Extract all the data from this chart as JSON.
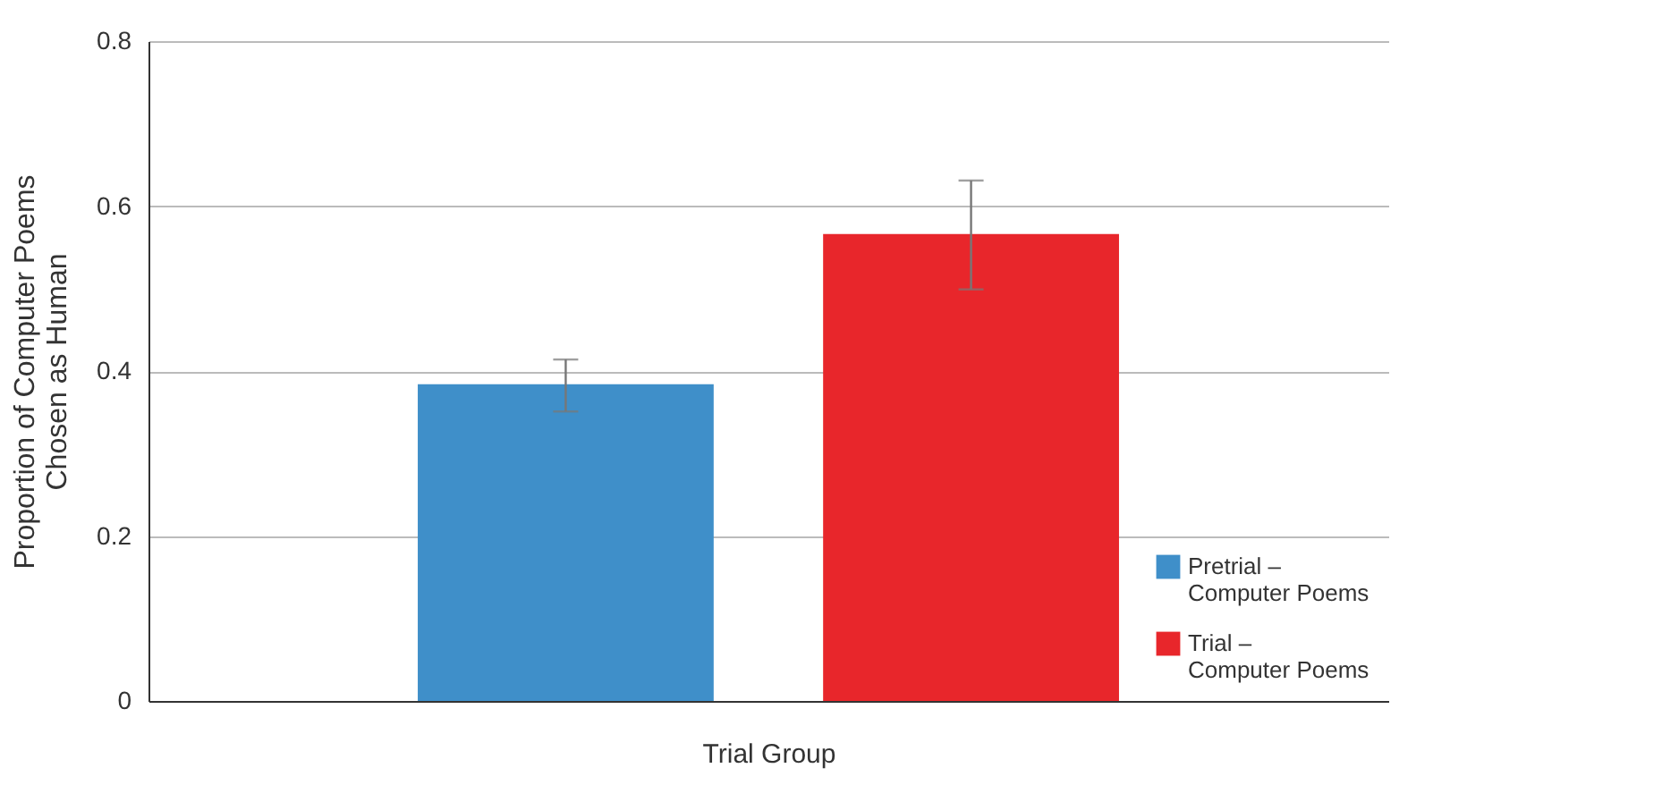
{
  "chart_data": {
    "type": "bar",
    "xlabel": "Trial Group",
    "ylabel": "Proportion of Computer Poems\nChosen as Human",
    "categories": [
      null
    ],
    "series": [
      {
        "name": "Pretrial – Computer Poems",
        "color": "#3f8fc9",
        "values": [
          0.384
        ],
        "errors": [
          [
            0.351,
            0.414
          ]
        ]
      },
      {
        "name": "Trial – Computer Poems",
        "color": "#e8262b",
        "values": [
          0.566
        ],
        "errors": [
          [
            0.499,
            0.631
          ]
        ]
      }
    ],
    "ylim": [
      0,
      0.8
    ],
    "yticks": [
      {
        "value": 0,
        "label": "0"
      },
      0.2,
      0.4,
      0.6,
      0.8
    ],
    "grid": "y",
    "legend": "bottom right"
  }
}
